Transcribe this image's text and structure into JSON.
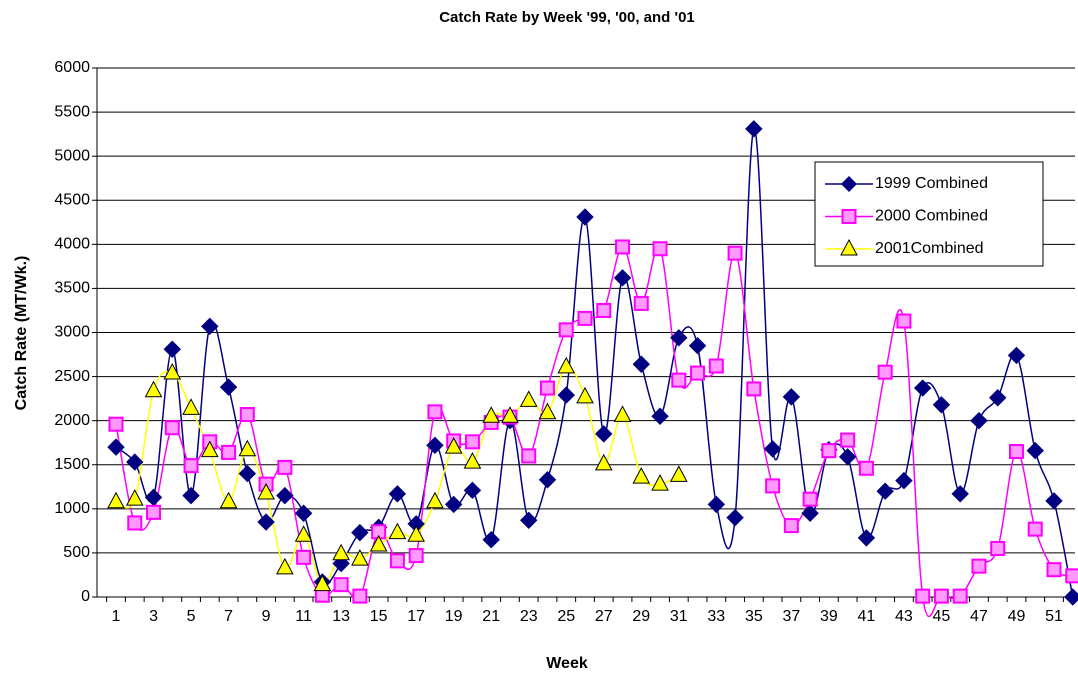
{
  "chart_data": {
    "type": "line",
    "title": "Catch Rate  by Week '99, '00, and '01",
    "x_label": "Week",
    "y_label": "Catch Rate (MT/Wk.)",
    "categories": [
      "1",
      null,
      "3",
      null,
      "5",
      null,
      "7",
      null,
      "9",
      null,
      "11",
      null,
      "13",
      null,
      "15",
      null,
      "17",
      null,
      "19",
      null,
      "21",
      null,
      "23",
      null,
      "25",
      null,
      "27",
      null,
      "29",
      null,
      "31",
      null,
      "33",
      null,
      "35",
      null,
      "37",
      null,
      "39",
      null,
      "41",
      null,
      "43",
      null,
      "45",
      null,
      "47",
      null,
      "49",
      null,
      "51",
      null
    ],
    "ylim": [
      0,
      6000
    ],
    "yticks": [
      0,
      500,
      1000,
      1500,
      2000,
      2500,
      3000,
      3500,
      4000,
      4500,
      5000,
      5500,
      6000
    ],
    "grid": true,
    "legend": "right",
    "smooth": true,
    "series": [
      {
        "name": "1999 Combined",
        "color": "#000080",
        "marker": "diamond",
        "values": [
          1700,
          1530,
          1130,
          2810,
          1150,
          3070,
          2380,
          1400,
          850,
          1150,
          950,
          170,
          380,
          730,
          790,
          1170,
          830,
          1720,
          1050,
          1210,
          650,
          2000,
          870,
          1330,
          2290,
          4310,
          1850,
          3620,
          2640,
          2050,
          2940,
          2850,
          1050,
          900,
          5310,
          1680,
          2270,
          950,
          1670,
          1590,
          670,
          1200,
          1320,
          2370,
          2180,
          1170,
          2000,
          2260,
          2740,
          1660,
          1090,
          0
        ]
      },
      {
        "name": "2000 Combined",
        "color": "#ff00ff",
        "marker": "square",
        "values": [
          1960,
          840,
          960,
          1920,
          1490,
          1760,
          1640,
          2070,
          1280,
          1470,
          450,
          20,
          140,
          10,
          740,
          410,
          470,
          2100,
          1770,
          1760,
          1980,
          2040,
          1600,
          2370,
          3030,
          3160,
          3250,
          3970,
          3330,
          3950,
          2460,
          2540,
          2620,
          3900,
          2360,
          1260,
          810,
          1110,
          1660,
          1780,
          1460,
          2550,
          3130,
          10,
          10,
          10,
          350,
          550,
          1650,
          770,
          310,
          240
        ]
      },
      {
        "name": "2001Combined",
        "color": "#ffff00",
        "marker": "triangle",
        "values": [
          1080,
          1110,
          2340,
          2540,
          2140,
          1660,
          1080,
          1670,
          1180,
          330,
          700,
          140,
          490,
          430,
          590,
          730,
          700,
          1080,
          1700,
          1530,
          2050,
          2050,
          2230,
          2090,
          2610,
          2270,
          1510,
          2060,
          1360,
          1280,
          1380,
          null,
          null,
          null,
          null,
          null,
          null,
          null,
          null,
          null,
          null,
          null,
          null,
          null,
          null,
          null,
          null,
          null,
          null,
          null,
          null,
          null
        ]
      }
    ]
  }
}
